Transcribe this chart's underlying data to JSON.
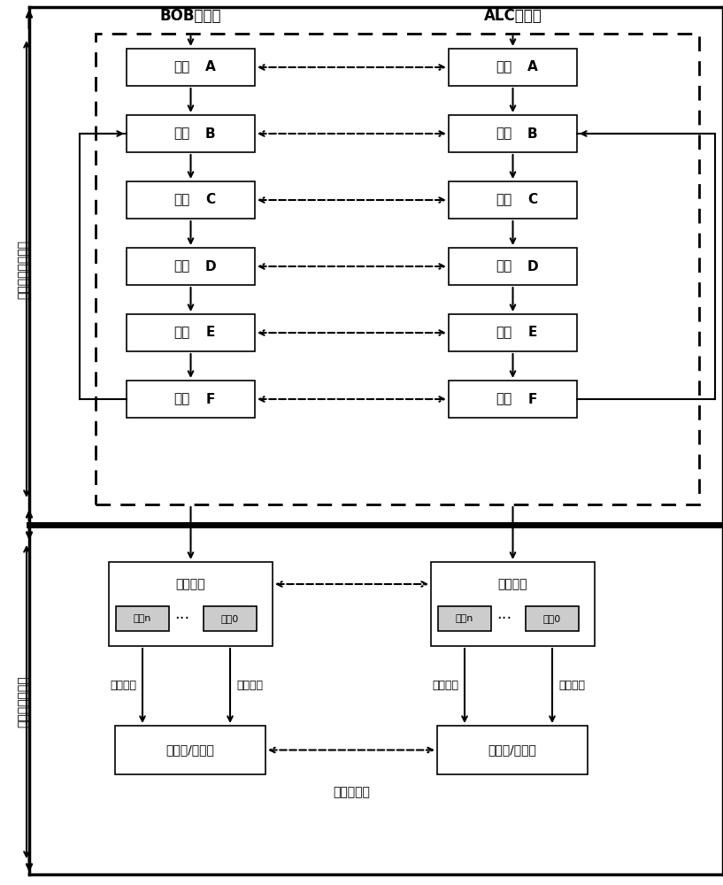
{
  "title_top_left": "BOB码本流",
  "title_top_right": "ALC码本流",
  "left_label_top": "码本协商序列阶段",
  "left_label_bottom": "码本管理应用层",
  "stages": [
    "阶段A",
    "阶段B",
    "阶段C",
    "阶段D",
    "阶段E",
    "阶段F"
  ],
  "codebook_label": "码本编号",
  "codebook_n": "码本n",
  "codebook_0": "码本0",
  "encoder_left": "编码方/解码方",
  "encoder_right": "解码方/编码方",
  "full_duplex": "全双工传输",
  "supply_label": "提供码本",
  "number_label": "码本编号",
  "bg_color": "#ffffff",
  "box_color": "#ffffff",
  "box_edge": "#000000",
  "dashed_color": "#000000",
  "solid_arrow_color": "#000000",
  "gray_box_color": "#cccccc",
  "font_size": 11,
  "small_font_size": 9
}
